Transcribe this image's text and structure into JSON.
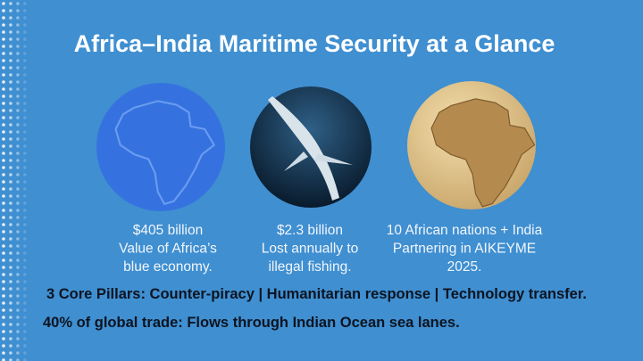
{
  "header": {
    "title": "Africa–India Maritime Security at a Glance"
  },
  "items": [
    {
      "lines": [
        "$405 billion",
        "Value of Africa’s",
        "blue economy."
      ]
    },
    {
      "lines": [
        "$2.3 billion",
        "Lost annually to",
        "illegal fishing."
      ]
    },
    {
      "lines": [
        "10 African nations + India",
        "Partnering in AIKEYME",
        "2025."
      ]
    }
  ],
  "facts": [
    "3 Core Pillars: Counter-piracy | Humanitarian response | Technology transfer.",
    "40% of global trade: Flows through Indian Ocean sea lanes."
  ]
}
